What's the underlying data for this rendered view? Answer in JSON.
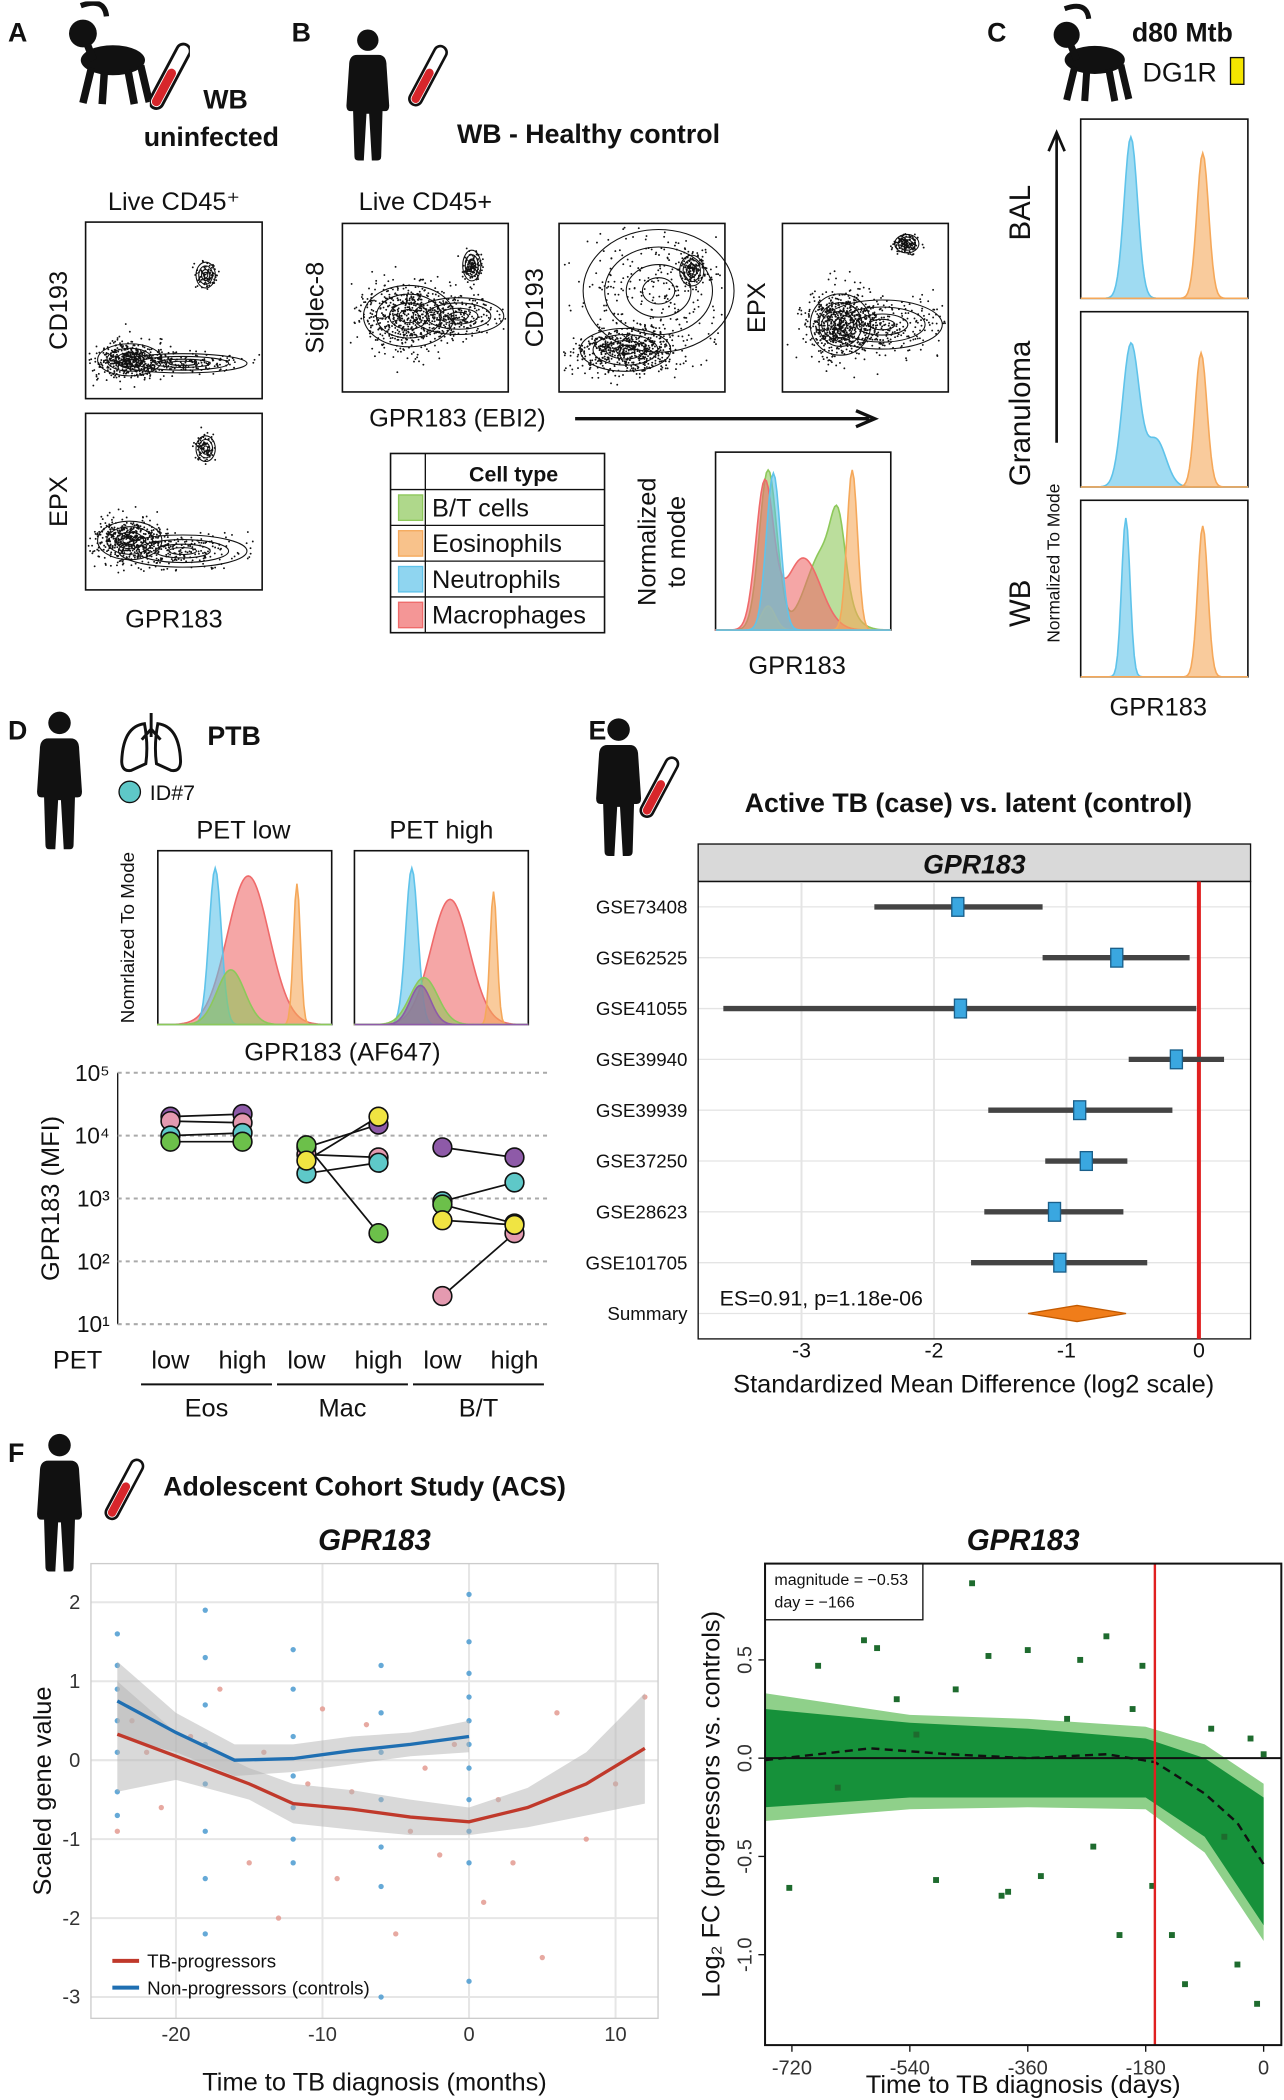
{
  "figure": {
    "A": {
      "label": "A",
      "sample": "WB",
      "condition": "uninfected",
      "gate": "Live CD45⁺",
      "y_labels": [
        "CD193",
        "EPX"
      ],
      "x_label": "GPR183"
    },
    "B": {
      "label": "B",
      "title": "WB - Healthy control",
      "gate": "Live CD45+",
      "y_labels": [
        "Siglec-8",
        "CD193",
        "EPX"
      ],
      "x_label": "GPR183 (EBI2)",
      "legend_header": "Cell type",
      "legend": [
        {
          "name": "B/T cells",
          "color": "#8dc85a"
        },
        {
          "name": "Eosinophils",
          "color": "#f5a85a"
        },
        {
          "name": "Neutrophils",
          "color": "#5fc3ea"
        },
        {
          "name": "Macrophages",
          "color": "#ef6a6a"
        }
      ],
      "hist_y_label": [
        "Normalized",
        "to mode"
      ],
      "hist_x_label": "GPR183"
    },
    "C": {
      "label": "C",
      "title": "d80 Mtb",
      "animal": "DG1R",
      "rows": [
        "BAL",
        "Granuloma",
        "WB"
      ],
      "y_label": "Normalized To Mode",
      "x_label": "GPR183"
    },
    "D": {
      "label": "D",
      "title": "PTB",
      "donor": "ID#7",
      "hist_titles": [
        "PET low",
        "PET high"
      ],
      "hist_y_label": "Nomrlaized To Mode",
      "hist_x_label": "GPR183 (AF647)"
    },
    "E": {
      "label": "E"
    },
    "F": {
      "label": "F",
      "title": "Adolescent Cohort Study (ACS)"
    }
  },
  "chart_data": [
    {
      "type": "dot",
      "ylabel": "GPR183 (MFI)",
      "yscale": "log",
      "ylim": [
        10,
        100000
      ],
      "yticks": [
        {
          "value": 10,
          "label": "10¹"
        },
        {
          "value": 100,
          "label": "10²"
        },
        {
          "value": 1000,
          "label": "10³"
        },
        {
          "value": 10000,
          "label": "10⁴"
        },
        {
          "value": 100000,
          "label": "10⁵"
        }
      ],
      "grid": true,
      "row_label": "PET",
      "categories": [
        "low",
        "high",
        "low",
        "high",
        "low",
        "high"
      ],
      "groups": [
        "Eos",
        "Mac",
        "B/T"
      ],
      "series": [
        {
          "color": "#8e5aa8",
          "values": [
            20000,
            22000,
            6500,
            15000,
            6500,
            4500
          ]
        },
        {
          "color": "#e49ab0",
          "values": [
            17000,
            16000,
            5000,
            4500,
            28,
            280
          ]
        },
        {
          "color": "#5ec8c8",
          "values": [
            10000,
            11000,
            2500,
            3700,
            900,
            1800
          ]
        },
        {
          "color": "#6cc04a",
          "values": [
            8000,
            8000,
            7000,
            280,
            800,
            400
          ]
        },
        {
          "color": "#f0e442",
          "values": [
            null,
            null,
            4000,
            20000,
            450,
            380
          ]
        }
      ]
    },
    {
      "type": "forest",
      "title": "Active TB (case) vs. latent (control)",
      "facet": "GPR183",
      "xlabel": "Standardized Mean Difference (log2 scale)",
      "xlim": [
        -3.78,
        0.39
      ],
      "xticks": [
        -3,
        -2,
        -1,
        0
      ],
      "reference": 0,
      "reference_color": "#e02020",
      "color": "#3aa7e0",
      "categories": [
        "GSE73408",
        "GSE62525",
        "GSE41055",
        "GSE39940",
        "GSE39939",
        "GSE37250",
        "GSE28623",
        "GSE101705"
      ],
      "values": [
        -1.82,
        -0.62,
        -1.8,
        -0.17,
        -0.9,
        -0.85,
        -1.09,
        -1.05
      ],
      "lower": [
        -2.45,
        -1.18,
        -3.59,
        -0.53,
        -1.59,
        -1.16,
        -1.62,
        -1.72
      ],
      "upper": [
        -1.18,
        -0.07,
        -0.02,
        0.19,
        -0.2,
        -0.54,
        -0.57,
        -0.39
      ],
      "summary": {
        "label": "Summary",
        "value": -0.92,
        "lower": -1.29,
        "upper": -0.55,
        "color": "#f07d1a"
      },
      "annotation": "ES=0.91, p=1.18e-06"
    },
    {
      "type": "scatter",
      "title": "GPR183",
      "xlabel": "Time to TB diagnosis (months)",
      "ylabel": "Scaled gene value",
      "xlim": [
        -25.8,
        12.9
      ],
      "ylim": [
        -3.27,
        2.49
      ],
      "xticks": [
        -20,
        -10,
        0,
        10
      ],
      "yticks": [
        -3,
        -2,
        -1,
        0,
        1,
        2
      ],
      "grid": true,
      "band_color": "#b4b4b4",
      "series": [
        {
          "name": "TB-progressors",
          "color": "#c0392b",
          "point_color": "#e39a90",
          "x": [
            -24,
            -23,
            -22,
            -21,
            -19,
            -17,
            -15,
            -14,
            -13,
            -11,
            -10,
            -9,
            -8,
            -7,
            -5,
            -4,
            -3,
            -2,
            -1,
            1,
            2,
            3,
            5,
            6,
            8,
            10,
            12
          ],
          "values": [
            -0.9,
            0.5,
            0.1,
            -0.6,
            0.3,
            0.9,
            -1.3,
            0.1,
            -2,
            -0.3,
            0.65,
            -1.5,
            -0.4,
            0.45,
            -2.2,
            -0.9,
            -0.1,
            -1.2,
            0.2,
            -1.8,
            -0.5,
            -1.3,
            -2.5,
            0.6,
            -1,
            -0.3,
            0.8
          ],
          "trend": {
            "x": [
              -24,
              -20,
              -15,
              -12,
              -8,
              -4,
              0,
              4,
              8,
              12
            ],
            "values": [
              0.33,
              0.05,
              -0.3,
              -0.55,
              -0.62,
              -0.72,
              -0.78,
              -0.6,
              -0.3,
              0.15
            ],
            "lower": [
              -0.4,
              -0.25,
              -0.5,
              -0.8,
              -0.88,
              -0.95,
              -0.95,
              -0.85,
              -0.7,
              -0.55
            ],
            "upper": [
              1,
              0.35,
              -0.1,
              -0.3,
              -0.38,
              -0.5,
              -0.6,
              -0.35,
              0.1,
              0.85
            ]
          }
        },
        {
          "name": "Non-progressors (controls)",
          "color": "#1f6fb2",
          "point_color": "#4a9ad0",
          "x": [
            -24,
            -24,
            -24,
            -24,
            -24,
            -24,
            -24,
            -18,
            -18,
            -18,
            -18,
            -18,
            -18,
            -18,
            -18,
            -12,
            -12,
            -12,
            -12,
            -12,
            -12,
            -12,
            -6,
            -6,
            -6,
            -6,
            -6,
            -6,
            -6,
            0,
            0,
            0,
            0,
            0,
            0,
            0,
            0,
            0,
            0,
            0
          ],
          "values": [
            1.6,
            1.2,
            0.9,
            0.5,
            0.1,
            -0.4,
            -0.7,
            1.9,
            1.3,
            0.7,
            0.2,
            -0.3,
            -0.9,
            -1.5,
            -2.2,
            1.4,
            0.9,
            0.3,
            -0.2,
            -0.6,
            -1,
            -1.3,
            1.2,
            0.6,
            0.1,
            -0.5,
            -1.1,
            -1.6,
            -3,
            2.1,
            1.5,
            1.1,
            0.8,
            0.5,
            0.2,
            -0.1,
            -0.5,
            -0.9,
            -1.3,
            -2.8
          ],
          "trend": {
            "x": [
              -24,
              -20,
              -16,
              -12,
              -8,
              -4,
              0
            ],
            "values": [
              0.75,
              0.35,
              0,
              0.02,
              0.12,
              0.2,
              0.3
            ],
            "lower": [
              0.3,
              0.1,
              -0.2,
              -0.15,
              -0.05,
              0.05,
              0.1
            ],
            "upper": [
              1.25,
              0.6,
              0.2,
              0.2,
              0.3,
              0.35,
              0.5
            ]
          }
        }
      ]
    },
    {
      "type": "scatter",
      "title": "GPR183",
      "xlabel": "Time to TB diagnosis (days)",
      "ylabel": "Log₂ FC (progressors vs. controls)",
      "xlim": [
        -761,
        27
      ],
      "ylim": [
        -1.46,
        0.99
      ],
      "xticks": [
        -720,
        -540,
        -360,
        -180,
        0
      ],
      "yticks": [
        {
          "value": -1,
          "label": "-1.0"
        },
        -0.5,
        {
          "value": 0,
          "label": "0.0"
        },
        0.5
      ],
      "bands": [
        {
          "color": "#8fd08a",
          "x": [
            -761,
            -540,
            -360,
            -180,
            -90,
            0
          ],
          "lower": [
            -0.32,
            -0.26,
            -0.25,
            -0.26,
            -0.48,
            -0.93
          ],
          "upper": [
            0.33,
            0.22,
            0.2,
            0.16,
            0.07,
            -0.13
          ]
        },
        {
          "color": "#16913a",
          "x": [
            -761,
            -540,
            -360,
            -180,
            -90,
            0
          ],
          "lower": [
            -0.25,
            -0.2,
            -0.2,
            -0.2,
            -0.4,
            -0.85
          ],
          "upper": [
            0.25,
            0.18,
            0.15,
            0.1,
            0,
            -0.2
          ]
        }
      ],
      "fit": {
        "x": [
          -761,
          -600,
          -480,
          -360,
          -240,
          -166,
          -90,
          -40,
          0
        ],
        "values": [
          -0.01,
          0.05,
          0.02,
          0,
          0.02,
          -0.02,
          -0.18,
          -0.33,
          -0.54
        ]
      },
      "series": [
        {
          "color": "#1e6b2e",
          "x": [
            -724,
            -680,
            -650,
            -610,
            -590,
            -560,
            -530,
            -500,
            -470,
            -445,
            -420,
            -400,
            -390,
            -360,
            -340,
            -300,
            -280,
            -260,
            -240,
            -220,
            -200,
            -185,
            -170,
            -140,
            -120,
            -80,
            -60,
            -40,
            -20,
            -10,
            0
          ],
          "values": [
            -0.66,
            0.47,
            -0.15,
            0.6,
            0.56,
            0.3,
            0.12,
            -0.62,
            0.35,
            0.89,
            0.52,
            -0.7,
            -0.68,
            0.55,
            -0.6,
            0.2,
            0.5,
            -0.45,
            0.62,
            -0.9,
            0.25,
            0.47,
            -0.65,
            -0.9,
            -1.15,
            0.15,
            -0.4,
            -1.05,
            0.1,
            -1.25,
            0.02
          ]
        }
      ],
      "marker": -166,
      "marker_color": "#e02020",
      "annotation": [
        "magnitude = −0.53",
        "day = −166"
      ]
    }
  ]
}
